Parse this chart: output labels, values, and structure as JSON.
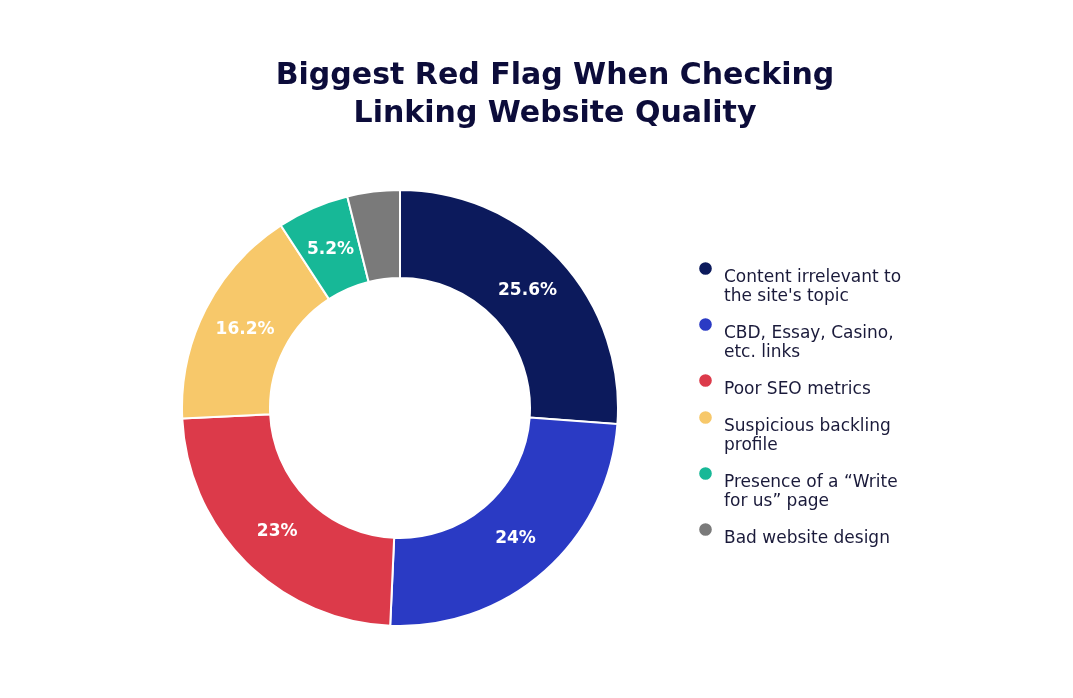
{
  "chart_data": {
    "type": "donut",
    "title": "Biggest Red Flag When Checking Linking Website Quality",
    "categories": [
      "Content irrelevant to the site's topic",
      "CBD, Essay, Casino, etc. links",
      "Poor SEO metrics",
      "Suspicious backling profile",
      "Presence of a “Write for us” page",
      "Bad website design"
    ],
    "values": [
      25.6,
      24,
      23,
      16.2,
      5.2,
      3.8
    ],
    "colors": [
      "#0c1a5c",
      "#2a3ac4",
      "#dc3a4a",
      "#f7c86a",
      "#17b897",
      "#7a7a7a"
    ],
    "value_labels": [
      "25.6%",
      "24%",
      "23%",
      "16.2%",
      "5.2%",
      null
    ],
    "legend": "right"
  }
}
